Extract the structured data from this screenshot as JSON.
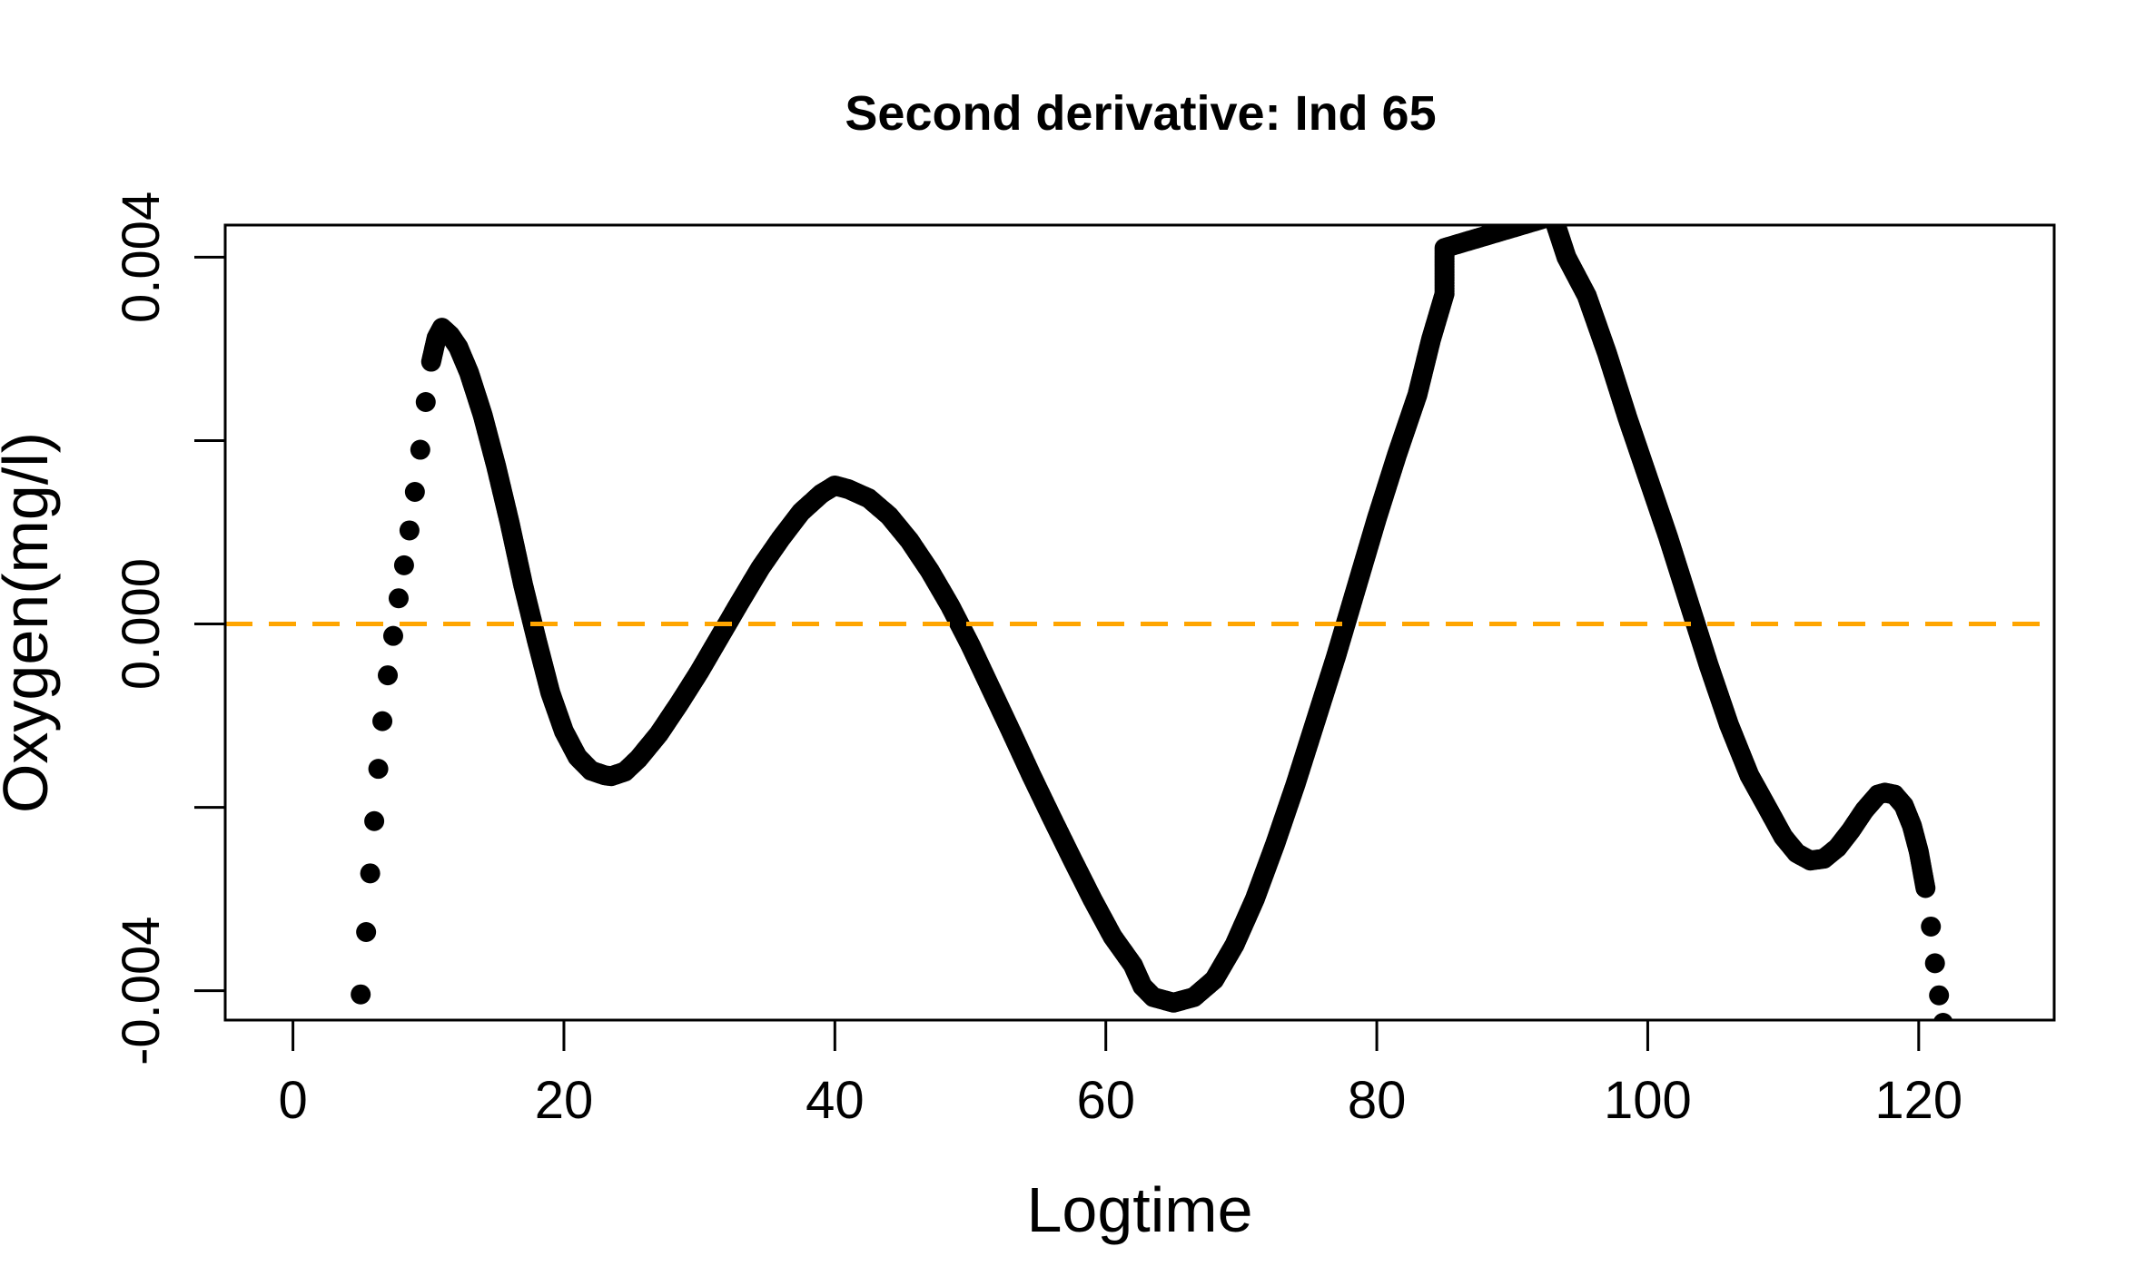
{
  "chart_data": {
    "type": "scatter",
    "title": "Second derivative: Ind 65",
    "xlabel": "Logtime",
    "ylabel": "Oxygen(mg/l)",
    "xlim": [
      -5,
      130
    ],
    "ylim": [
      -0.00432,
      0.00435
    ],
    "x_ticks": [
      0,
      20,
      40,
      60,
      80,
      100,
      120
    ],
    "x_tick_labels": [
      "0",
      "20",
      "40",
      "60",
      "80",
      "100",
      "120"
    ],
    "y_ticks": [
      -0.004,
      -0.002,
      0.0,
      0.002,
      0.004
    ],
    "y_tick_labels": [
      "-0.004",
      "",
      "0.000",
      "",
      "0.004"
    ],
    "grid": false,
    "reference_line": {
      "y": 0.0,
      "color": "#FFA500",
      "style": "dashed"
    },
    "point_color": "#000000",
    "series": [
      {
        "x": [
          5.0,
          5.4,
          5.7,
          6.0,
          6.3,
          6.6,
          7.0,
          7.4,
          7.8,
          8.2,
          8.6,
          9.0,
          9.4,
          9.8,
          10.2,
          10.6,
          11.0,
          11.6,
          12.2,
          13.0,
          14.0,
          15.0,
          16.0,
          17.0,
          18.0,
          19.0,
          20.0,
          21.0,
          22.0,
          23.0,
          23.5,
          24.5,
          25.5,
          27.0,
          28.5,
          30.0,
          31.5,
          33.0,
          34.5,
          36.0,
          37.5,
          39.0,
          40.0,
          41.0,
          42.5,
          44.0,
          45.5,
          47.0,
          48.5,
          50.0,
          51.5,
          53.0,
          54.5,
          56.0,
          57.5,
          59.0,
          60.5,
          62.0,
          62.7,
          63.5,
          65.0,
          66.5,
          68.0,
          69.5,
          71.0,
          72.5,
          74.0,
          75.5,
          77.0,
          78.5,
          80.0,
          81.5,
          83.0,
          84.0,
          85.0,
          85.0,
          93.0,
          93.0,
          94.0,
          95.5,
          97.0,
          98.5,
          100.0,
          101.5,
          103.0,
          104.5,
          106.0,
          107.5,
          109.0,
          110.0,
          111.0,
          112.0,
          113.0,
          114.0,
          115.0,
          116.0,
          117.0,
          117.5,
          118.2,
          118.9,
          119.5,
          120.0,
          120.5,
          120.9,
          121.2,
          121.5,
          121.8,
          122.0,
          122.2
        ],
        "y": [
          -0.00404,
          -0.00336,
          -0.00272,
          -0.00215,
          -0.00158,
          -0.00106,
          -0.00056,
          -0.00013,
          0.00028,
          0.00064,
          0.00102,
          0.00144,
          0.0019,
          0.00242,
          0.00286,
          0.00312,
          0.00323,
          0.00315,
          0.00302,
          0.00274,
          0.00228,
          0.00172,
          0.0011,
          0.00042,
          -0.00018,
          -0.00075,
          -0.00117,
          -0.00145,
          -0.0016,
          -0.00165,
          -0.00166,
          -0.00161,
          -0.00147,
          -0.0012,
          -0.00087,
          -0.00052,
          -0.00014,
          0.00024,
          0.00061,
          0.00093,
          0.00122,
          0.00142,
          0.00151,
          0.00147,
          0.00137,
          0.00118,
          0.00091,
          0.00058,
          0.0002,
          -0.00023,
          -0.0007,
          -0.00117,
          -0.00165,
          -0.00211,
          -0.00256,
          -0.003,
          -0.00341,
          -0.00372,
          -0.00395,
          -0.00407,
          -0.00413,
          -0.00407,
          -0.00388,
          -0.0035,
          -0.003,
          -0.0024,
          -0.00175,
          -0.00105,
          -0.00035,
          0.0004,
          0.00115,
          0.00185,
          0.0025,
          0.0031,
          0.0036,
          0.0041,
          0.00445,
          0.00445,
          0.004,
          0.00358,
          0.00295,
          0.00225,
          0.0016,
          0.00095,
          0.00025,
          -0.00045,
          -0.0011,
          -0.00165,
          -0.00205,
          -0.00232,
          -0.0025,
          -0.00258,
          -0.00256,
          -0.00244,
          -0.00225,
          -0.00203,
          -0.00186,
          -0.00184,
          -0.00186,
          -0.00198,
          -0.0022,
          -0.00248,
          -0.00288,
          -0.0033,
          -0.0037,
          -0.00405,
          -0.00435,
          -0.00455,
          -0.00475
        ]
      }
    ]
  }
}
